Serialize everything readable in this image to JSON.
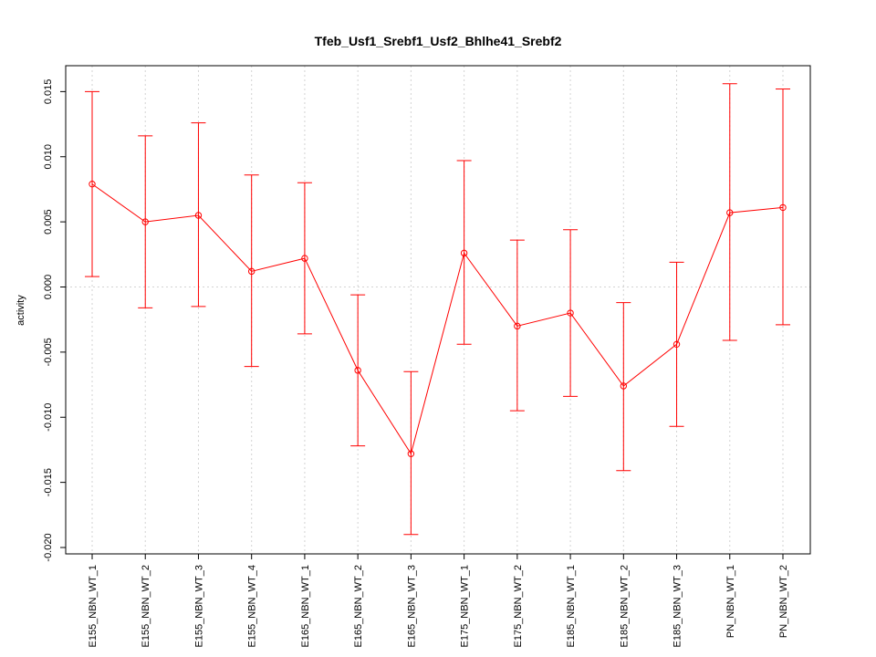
{
  "chart_data": {
    "type": "line",
    "title": "Tfeb_Usf1_Srebf1_Usf2_Bhlhe41_Srebf2",
    "xlabel": "",
    "ylabel": "activity",
    "categories": [
      "E155_NBN_WT_1",
      "E155_NBN_WT_2",
      "E155_NBN_WT_3",
      "E155_NBN_WT_4",
      "E165_NBN_WT_1",
      "E165_NBN_WT_2",
      "E165_NBN_WT_3",
      "E175_NBN_WT_1",
      "E175_NBN_WT_2",
      "E185_NBN_WT_1",
      "E185_NBN_WT_2",
      "E185_NBN_WT_3",
      "PN_NBN_WT_1",
      "PN_NBN_WT_2"
    ],
    "series": [
      {
        "values": [
          0.0079,
          0.005,
          0.0055,
          0.0012,
          0.0022,
          -0.0064,
          -0.0128,
          0.0026,
          -0.003,
          -0.002,
          -0.0076,
          -0.0044,
          0.0057,
          0.0061
        ],
        "lower": [
          0.0008,
          -0.0016,
          -0.0015,
          -0.0061,
          -0.0036,
          -0.0122,
          -0.019,
          -0.0044,
          -0.0095,
          -0.0084,
          -0.0141,
          -0.0107,
          -0.0041,
          -0.0029
        ],
        "upper": [
          0.015,
          0.0116,
          0.0126,
          0.0086,
          0.008,
          -0.0006,
          -0.0065,
          0.0097,
          0.0036,
          0.0044,
          -0.0012,
          0.0019,
          0.0156,
          0.0152
        ],
        "color": "#ff0000"
      }
    ],
    "yticks": [
      -0.02,
      -0.015,
      -0.01,
      -0.005,
      0.0,
      0.005,
      0.01,
      0.015
    ],
    "ytick_labels": [
      "-0.020",
      "-0.015",
      "-0.010",
      "-0.005",
      "0.000",
      "0.005",
      "0.010",
      "0.015"
    ],
    "ylim": [
      -0.0205,
      0.017
    ],
    "grid": true,
    "grid_color": "#d3d3d3",
    "zero_line": true
  }
}
